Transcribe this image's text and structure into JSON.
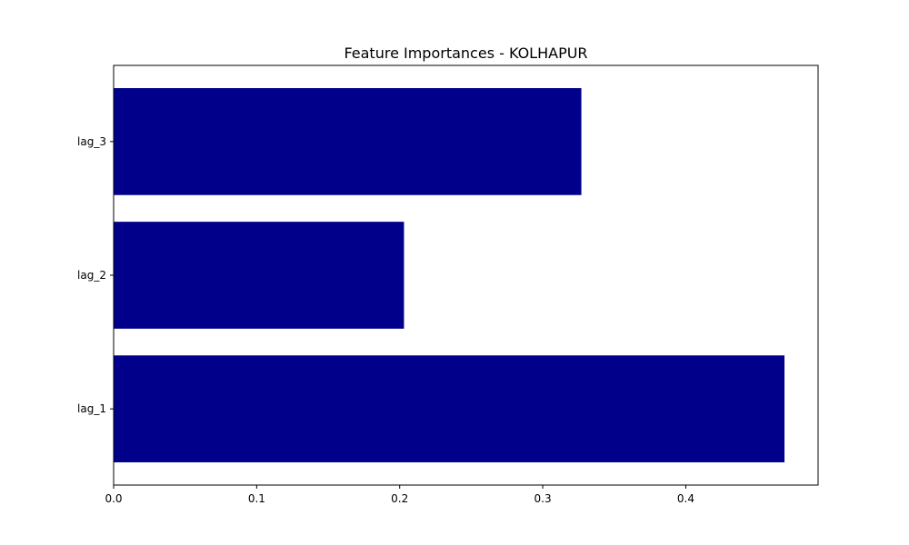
{
  "chart_data": {
    "type": "bar",
    "orientation": "horizontal",
    "title": "Feature Importances - KOLHAPUR",
    "xlabel": "",
    "ylabel": "",
    "categories": [
      "lag_1",
      "lag_2",
      "lag_3"
    ],
    "values": [
      0.469,
      0.203,
      0.327
    ],
    "xlim": [
      0,
      0.4925
    ],
    "xticks": [
      0.0,
      0.1,
      0.2,
      0.3,
      0.4
    ],
    "xtick_labels": [
      "0.0",
      "0.1",
      "0.2",
      "0.3",
      "0.4"
    ],
    "grid": false,
    "legend": "none",
    "bar_color": "#00008b"
  }
}
